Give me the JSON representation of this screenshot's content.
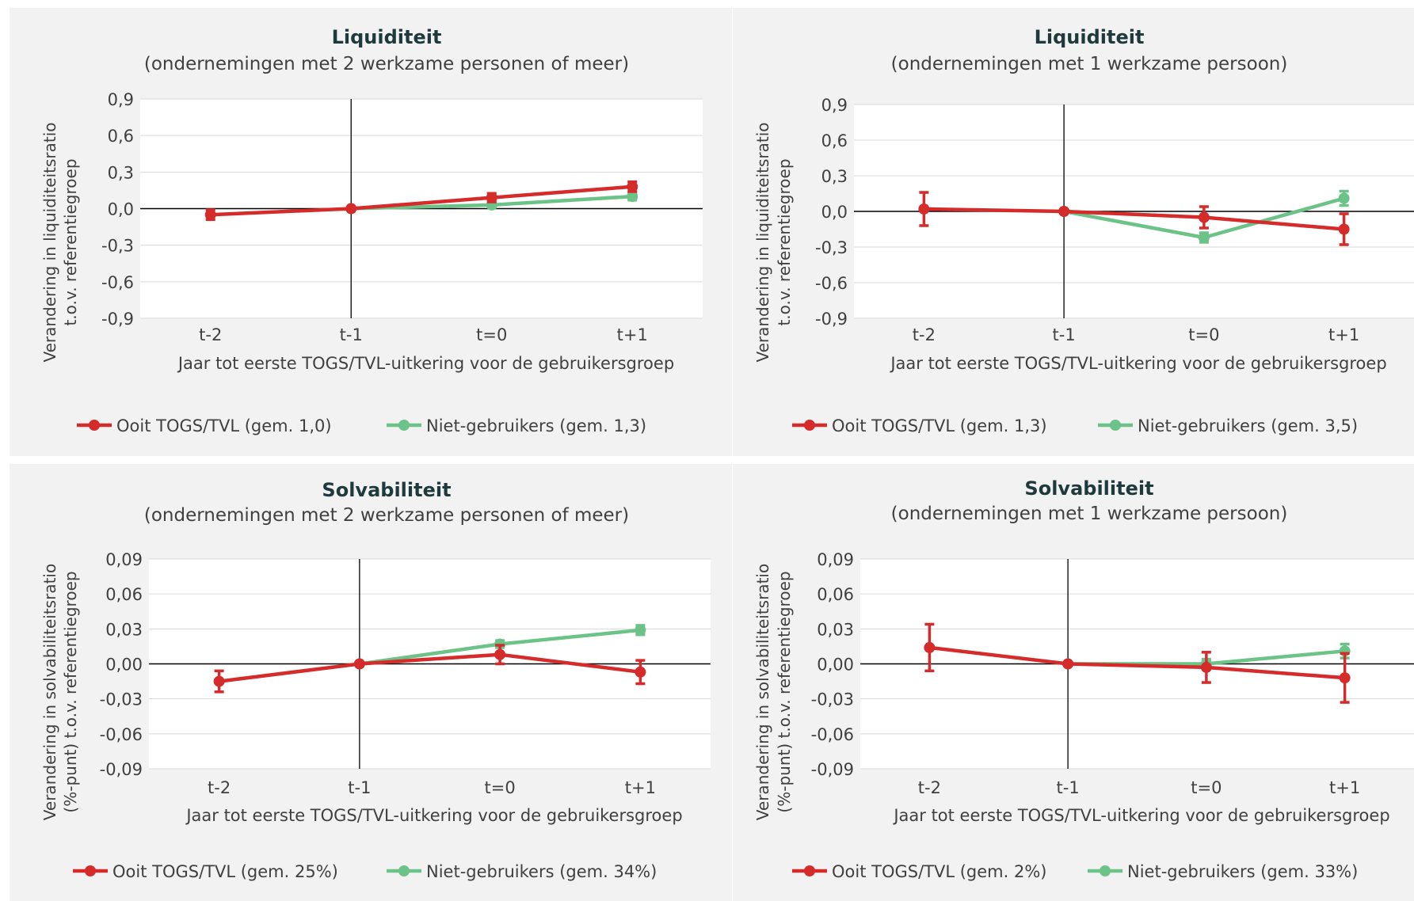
{
  "colors": {
    "red": "#d62b2b",
    "green": "#6cc387",
    "panel_bg": "#f2f2f2",
    "plot_bg": "#ffffff",
    "grid": "#d9d9d9",
    "axis": "#000000",
    "text": "#404040",
    "title": "#1f3a3d"
  },
  "chart_data": [
    {
      "type": "line",
      "title": "Liquiditeit",
      "subtitle": "(ondernemingen met 2 werkzame personen of meer)",
      "xlabel": "Jaar tot eerste TOGS/TVL-uitkering voor de gebruikersgroep",
      "ylabel": [
        "Verandering in liquiditeitsratio",
        "t.o.v. referentiegroep"
      ],
      "categories": [
        "t-2",
        "t-1",
        "t=0",
        "t+1"
      ],
      "ylim": [
        -0.9,
        0.9
      ],
      "yticks": [
        "0,9",
        "0,6",
        "0,3",
        "0,0",
        "-0,3",
        "-0,6",
        "-0,9"
      ],
      "grid": true,
      "legend_position": "bottom",
      "series": [
        {
          "name": "Ooit TOGS/TVL (gem. 1,0)",
          "color": "#d62b2b",
          "values": [
            -0.05,
            0.0,
            0.09,
            0.18
          ],
          "error": [
            0.04,
            0.0,
            0.035,
            0.04
          ]
        },
        {
          "name": "Niet-gebruikers (gem. 1,3)",
          "color": "#6cc387",
          "values": [
            null,
            0.0,
            0.03,
            0.1
          ],
          "error": [
            null,
            0.0,
            0.02,
            0.03
          ]
        }
      ]
    },
    {
      "type": "line",
      "title": "Liquiditeit",
      "subtitle": "(ondernemingen met 1 werkzame persoon)",
      "xlabel": "Jaar tot eerste TOGS/TVL-uitkering voor de gebruikersgroep",
      "ylabel": [
        "Verandering in liquiditeitsratio",
        "t.o.v. referentiegroep"
      ],
      "categories": [
        "t-2",
        "t-1",
        "t=0",
        "t+1"
      ],
      "ylim": [
        -0.9,
        0.9
      ],
      "yticks": [
        "0,9",
        "0,6",
        "0,3",
        "0,0",
        "-0,3",
        "-0,6",
        "-0,9"
      ],
      "grid": true,
      "legend_position": "bottom",
      "series": [
        {
          "name": "Ooit TOGS/TVL (gem. 1,3)",
          "color": "#d62b2b",
          "values": [
            0.02,
            0.0,
            -0.05,
            -0.15
          ],
          "error": [
            0.14,
            0.0,
            0.09,
            0.13
          ]
        },
        {
          "name": "Niet-gebruikers (gem. 3,5)",
          "color": "#6cc387",
          "values": [
            null,
            0.0,
            -0.22,
            0.11
          ],
          "error": [
            null,
            0.0,
            0.04,
            0.06
          ]
        }
      ]
    },
    {
      "type": "line",
      "title": "Solvabiliteit",
      "subtitle": "(ondernemingen met 2 werkzame personen of meer)",
      "xlabel": "Jaar tot eerste TOGS/TVL-uitkering voor de gebruikersgroep",
      "ylabel": [
        "Verandering in solvabiliteitsratio",
        "(%-punt) t.o.v. referentiegroep"
      ],
      "categories": [
        "t-2",
        "t-1",
        "t=0",
        "t+1"
      ],
      "ylim": [
        -0.09,
        0.09
      ],
      "yticks": [
        "0,09",
        "0,06",
        "0,03",
        "0,00",
        "-0,03",
        "-0,06",
        "-0,09"
      ],
      "grid": true,
      "legend_position": "bottom",
      "series": [
        {
          "name": "Ooit TOGS/TVL (gem. 25%)",
          "color": "#d62b2b",
          "values": [
            -0.015,
            0.0,
            0.008,
            -0.007
          ],
          "error": [
            0.009,
            0.0,
            0.008,
            0.01
          ]
        },
        {
          "name": "Niet-gebruikers (gem. 34%)",
          "color": "#6cc387",
          "values": [
            null,
            0.0,
            0.017,
            0.029
          ],
          "error": [
            null,
            0.0,
            0.003,
            0.004
          ]
        }
      ]
    },
    {
      "type": "line",
      "title": "Solvabiliteit",
      "subtitle": "(ondernemingen met 1 werkzame persoon)",
      "xlabel": "Jaar tot eerste TOGS/TVL-uitkering voor de gebruikersgroep",
      "ylabel": [
        "Verandering in solvabiliteitsratio",
        "(%-punt) t.o.v. referentiegroep"
      ],
      "categories": [
        "t-2",
        "t-1",
        "t=0",
        "t+1"
      ],
      "ylim": [
        -0.09,
        0.09
      ],
      "yticks": [
        "0,09",
        "0,06",
        "0,03",
        "0,00",
        "-0,03",
        "-0,06",
        "-0,09"
      ],
      "grid": true,
      "legend_position": "bottom",
      "series": [
        {
          "name": "Ooit TOGS/TVL (gem. 2%)",
          "color": "#d62b2b",
          "values": [
            0.014,
            0.0,
            -0.003,
            -0.012
          ],
          "error": [
            0.02,
            0.0,
            0.013,
            0.021
          ]
        },
        {
          "name": "Niet-gebruikers (gem. 33%)",
          "color": "#6cc387",
          "values": [
            null,
            0.0,
            0.0,
            0.011
          ],
          "error": [
            null,
            0.0,
            0.004,
            0.006
          ]
        }
      ]
    }
  ]
}
